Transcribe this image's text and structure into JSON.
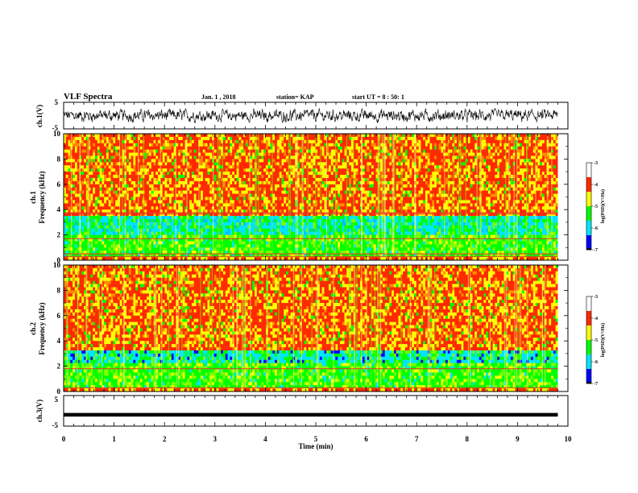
{
  "header": {
    "title": "VLF Spectra",
    "date": "Jan. 1 , 2018",
    "station": "station= KAP",
    "start": "start UT =  8 : 50: 1"
  },
  "colors": {
    "spectrogram_scale": [
      "#000000",
      "#0000ff",
      "#00e5ff",
      "#00ff00",
      "#ffff00",
      "#ff2a00",
      "#ffffff"
    ],
    "waveform": "#000000",
    "axes": "#000000"
  },
  "chart_data": [
    {
      "type": "line",
      "name": "ch1-waveform",
      "ylabel": "ch.1(V)",
      "ylim": [
        -5,
        5
      ],
      "yticks": [
        "5",
        "-5"
      ],
      "xlim": [
        0,
        10
      ],
      "description_of_signal": "noisy waveform around 0 V, amplitude roughly ±2.5 V"
    },
    {
      "type": "heatmap",
      "name": "ch1-spectrogram",
      "ylabel_line1": "ch.1",
      "ylabel_line2": "Frequency (kHz)",
      "ylim": [
        0,
        10
      ],
      "yticks": [
        "0",
        "2",
        "4",
        "6",
        "8",
        "10"
      ],
      "xlim": [
        0,
        9.8
      ],
      "colorbar_label": "log(PSD)(V²/Hz)",
      "colorbar_range": [
        -7,
        -3
      ],
      "colorbar_ticks": [
        "-3",
        "-4",
        "-5",
        "-6",
        "-7"
      ],
      "band_bounds_khz": [
        3.5,
        2.1
      ]
    },
    {
      "type": "heatmap",
      "name": "ch2-spectrogram",
      "ylabel_line1": "ch.2",
      "ylabel_line2": "Frequency (kHz)",
      "ylim": [
        0,
        10
      ],
      "yticks": [
        "0",
        "2",
        "4",
        "6",
        "8",
        "10"
      ],
      "xlim": [
        0,
        9.8
      ],
      "colorbar_label": "log(PSD)(V²/Hz)",
      "colorbar_range": [
        -7,
        -3
      ],
      "colorbar_ticks": [
        "-3",
        "-4",
        "-5",
        "-6",
        "-7"
      ],
      "band_bounds_khz": [
        3.3,
        2.3
      ]
    },
    {
      "type": "line",
      "name": "ch3-waveform",
      "ylabel": "ch.3(V)",
      "ylim": [
        -5,
        5
      ],
      "yticks": [
        "5",
        "-5"
      ],
      "x": [
        0,
        9.8
      ],
      "y": [
        -1.3,
        -1.3
      ],
      "xlabel": "Time (min)",
      "xticks": [
        "0",
        "1",
        "2",
        "3",
        "4",
        "5",
        "6",
        "7",
        "8",
        "9",
        "10"
      ],
      "xlim": [
        0,
        10
      ]
    }
  ]
}
